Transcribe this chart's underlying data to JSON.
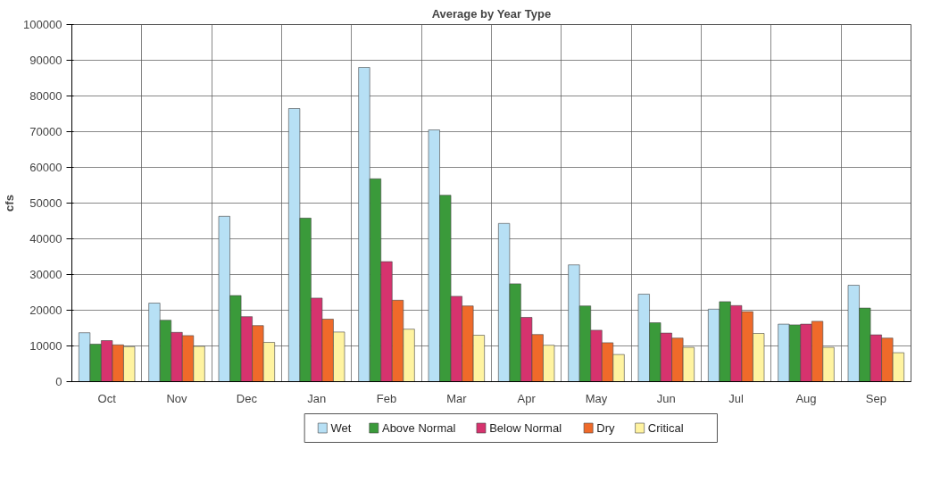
{
  "chart_data": {
    "type": "bar",
    "title": "Average by Year Type",
    "ylabel": "cfs",
    "categories": [
      "Oct",
      "Nov",
      "Dec",
      "Jan",
      "Feb",
      "Mar",
      "Apr",
      "May",
      "Jun",
      "Jul",
      "Aug",
      "Sep"
    ],
    "series": [
      {
        "name": "Wet",
        "color": "#b7e0f5",
        "values": [
          13700,
          22000,
          46300,
          76500,
          88000,
          70500,
          44300,
          32700,
          24500,
          20300,
          16100,
          27000
        ]
      },
      {
        "name": "Above Normal",
        "color": "#3a9a3a",
        "values": [
          10500,
          17200,
          24100,
          45800,
          56800,
          52200,
          27400,
          21200,
          16500,
          22400,
          15900,
          20600
        ]
      },
      {
        "name": "Below Normal",
        "color": "#d6336e",
        "values": [
          11500,
          13800,
          18200,
          23400,
          33600,
          23900,
          18000,
          14400,
          13600,
          21300,
          16100,
          13100
        ]
      },
      {
        "name": "Dry",
        "color": "#ef6a2a",
        "values": [
          10300,
          12900,
          15700,
          17500,
          22800,
          21200,
          13200,
          10900,
          12200,
          19600,
          16900,
          12200
        ]
      },
      {
        "name": "Critical",
        "color": "#fff3a0",
        "values": [
          9800,
          9900,
          11000,
          13900,
          14700,
          13000,
          10200,
          7600,
          9600,
          13500,
          9600,
          8100
        ]
      }
    ],
    "ylim": [
      0,
      100000
    ],
    "yticks": [
      0,
      10000,
      20000,
      30000,
      40000,
      50000,
      60000,
      70000,
      80000,
      90000,
      100000
    ],
    "grid": true,
    "legend": "bottom"
  }
}
